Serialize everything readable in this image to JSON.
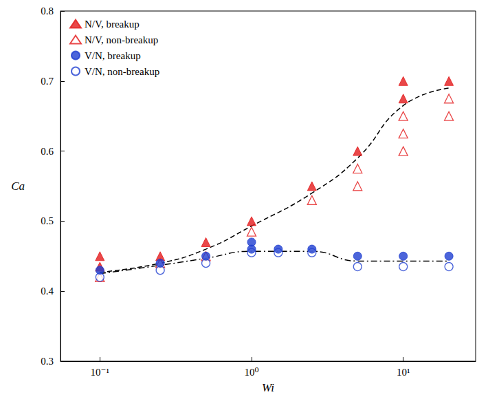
{
  "chart_data": {
    "type": "scatter",
    "x_label": "Wi",
    "y_label": "Ca",
    "log": "x",
    "grid": false,
    "legend": "top-left",
    "xlim": [
      0.055,
      30
    ],
    "xticks": [
      {
        "value": 0.1,
        "label": "10⁻¹"
      },
      {
        "value": 1,
        "label": "10⁰"
      },
      {
        "value": 10,
        "label": "10¹"
      }
    ],
    "ylim": [
      0.3,
      0.8
    ],
    "yticks": [
      0.3,
      0.4,
      0.5,
      0.6,
      0.7,
      0.8
    ],
    "series": [
      {
        "name": "N/V, breakup",
        "color": "#e41a1c",
        "marker": "triangle",
        "x": [
          0.1,
          0.1,
          0.25,
          0.5,
          1,
          2.5,
          5,
          10,
          10,
          20
        ],
        "values": [
          0.45,
          0.435,
          0.45,
          0.47,
          0.5,
          0.55,
          0.6,
          0.7,
          0.675,
          0.7
        ]
      },
      {
        "name": "N/V, non-breakup",
        "color": "#e41a1c",
        "marker": "triangle-open",
        "x": [
          0.1,
          0.25,
          0.5,
          1,
          2.5,
          5,
          5,
          10,
          10,
          10,
          20,
          20
        ],
        "values": [
          0.42,
          0.44,
          0.45,
          0.485,
          0.53,
          0.575,
          0.55,
          0.65,
          0.625,
          0.6,
          0.675,
          0.65
        ]
      },
      {
        "name": "V/N, breakup",
        "color": "#1f3fd1",
        "marker": "circle",
        "x": [
          0.1,
          0.25,
          0.5,
          1,
          1,
          1.5,
          2.5,
          5,
          10,
          20
        ],
        "values": [
          0.43,
          0.44,
          0.45,
          0.47,
          0.46,
          0.46,
          0.46,
          0.45,
          0.45,
          0.45
        ]
      },
      {
        "name": "V/N, non-breakup",
        "color": "#1f3fd1",
        "marker": "circle-open",
        "x": [
          0.1,
          0.25,
          0.5,
          1,
          1.5,
          2.5,
          5,
          10,
          20
        ],
        "values": [
          0.42,
          0.43,
          0.44,
          0.455,
          0.455,
          0.455,
          0.435,
          0.435,
          0.435
        ]
      },
      {
        "type": "line",
        "color": "#000000",
        "line_style": "dashed",
        "x": [
          0.1,
          0.25,
          0.5,
          1,
          2.5,
          5,
          10,
          20
        ],
        "values": [
          0.427,
          0.44,
          0.46,
          0.493,
          0.54,
          0.59,
          0.665,
          0.69
        ]
      },
      {
        "type": "line",
        "color": "#000000",
        "line_style": "dashdot",
        "x": [
          0.1,
          0.25,
          0.5,
          1,
          2.5,
          5,
          10,
          20
        ],
        "values": [
          0.425,
          0.437,
          0.447,
          0.457,
          0.457,
          0.443,
          0.443,
          0.443
        ]
      }
    ]
  }
}
